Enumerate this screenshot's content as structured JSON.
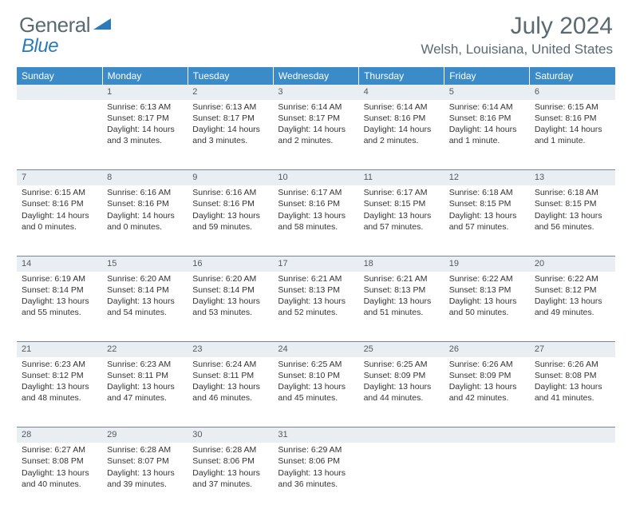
{
  "logo": {
    "part1": "General",
    "part2": "Blue"
  },
  "title": "July 2024",
  "subtitle": "Welsh, Louisiana, United States",
  "headers": [
    "Sunday",
    "Monday",
    "Tuesday",
    "Wednesday",
    "Thursday",
    "Friday",
    "Saturday"
  ],
  "colors": {
    "header_bg": "#3b8bc9",
    "daynum_bg": "#e9eef2",
    "rule": "#7a8591",
    "logo_gray": "#5a6a72",
    "logo_blue": "#2b7bb9"
  },
  "weeks": [
    [
      null,
      {
        "n": "1",
        "sr": "Sunrise: 6:13 AM",
        "ss": "Sunset: 8:17 PM",
        "d1": "Daylight: 14 hours",
        "d2": "and 3 minutes."
      },
      {
        "n": "2",
        "sr": "Sunrise: 6:13 AM",
        "ss": "Sunset: 8:17 PM",
        "d1": "Daylight: 14 hours",
        "d2": "and 3 minutes."
      },
      {
        "n": "3",
        "sr": "Sunrise: 6:14 AM",
        "ss": "Sunset: 8:17 PM",
        "d1": "Daylight: 14 hours",
        "d2": "and 2 minutes."
      },
      {
        "n": "4",
        "sr": "Sunrise: 6:14 AM",
        "ss": "Sunset: 8:16 PM",
        "d1": "Daylight: 14 hours",
        "d2": "and 2 minutes."
      },
      {
        "n": "5",
        "sr": "Sunrise: 6:14 AM",
        "ss": "Sunset: 8:16 PM",
        "d1": "Daylight: 14 hours",
        "d2": "and 1 minute."
      },
      {
        "n": "6",
        "sr": "Sunrise: 6:15 AM",
        "ss": "Sunset: 8:16 PM",
        "d1": "Daylight: 14 hours",
        "d2": "and 1 minute."
      }
    ],
    [
      {
        "n": "7",
        "sr": "Sunrise: 6:15 AM",
        "ss": "Sunset: 8:16 PM",
        "d1": "Daylight: 14 hours",
        "d2": "and 0 minutes."
      },
      {
        "n": "8",
        "sr": "Sunrise: 6:16 AM",
        "ss": "Sunset: 8:16 PM",
        "d1": "Daylight: 14 hours",
        "d2": "and 0 minutes."
      },
      {
        "n": "9",
        "sr": "Sunrise: 6:16 AM",
        "ss": "Sunset: 8:16 PM",
        "d1": "Daylight: 13 hours",
        "d2": "and 59 minutes."
      },
      {
        "n": "10",
        "sr": "Sunrise: 6:17 AM",
        "ss": "Sunset: 8:16 PM",
        "d1": "Daylight: 13 hours",
        "d2": "and 58 minutes."
      },
      {
        "n": "11",
        "sr": "Sunrise: 6:17 AM",
        "ss": "Sunset: 8:15 PM",
        "d1": "Daylight: 13 hours",
        "d2": "and 57 minutes."
      },
      {
        "n": "12",
        "sr": "Sunrise: 6:18 AM",
        "ss": "Sunset: 8:15 PM",
        "d1": "Daylight: 13 hours",
        "d2": "and 57 minutes."
      },
      {
        "n": "13",
        "sr": "Sunrise: 6:18 AM",
        "ss": "Sunset: 8:15 PM",
        "d1": "Daylight: 13 hours",
        "d2": "and 56 minutes."
      }
    ],
    [
      {
        "n": "14",
        "sr": "Sunrise: 6:19 AM",
        "ss": "Sunset: 8:14 PM",
        "d1": "Daylight: 13 hours",
        "d2": "and 55 minutes."
      },
      {
        "n": "15",
        "sr": "Sunrise: 6:20 AM",
        "ss": "Sunset: 8:14 PM",
        "d1": "Daylight: 13 hours",
        "d2": "and 54 minutes."
      },
      {
        "n": "16",
        "sr": "Sunrise: 6:20 AM",
        "ss": "Sunset: 8:14 PM",
        "d1": "Daylight: 13 hours",
        "d2": "and 53 minutes."
      },
      {
        "n": "17",
        "sr": "Sunrise: 6:21 AM",
        "ss": "Sunset: 8:13 PM",
        "d1": "Daylight: 13 hours",
        "d2": "and 52 minutes."
      },
      {
        "n": "18",
        "sr": "Sunrise: 6:21 AM",
        "ss": "Sunset: 8:13 PM",
        "d1": "Daylight: 13 hours",
        "d2": "and 51 minutes."
      },
      {
        "n": "19",
        "sr": "Sunrise: 6:22 AM",
        "ss": "Sunset: 8:13 PM",
        "d1": "Daylight: 13 hours",
        "d2": "and 50 minutes."
      },
      {
        "n": "20",
        "sr": "Sunrise: 6:22 AM",
        "ss": "Sunset: 8:12 PM",
        "d1": "Daylight: 13 hours",
        "d2": "and 49 minutes."
      }
    ],
    [
      {
        "n": "21",
        "sr": "Sunrise: 6:23 AM",
        "ss": "Sunset: 8:12 PM",
        "d1": "Daylight: 13 hours",
        "d2": "and 48 minutes."
      },
      {
        "n": "22",
        "sr": "Sunrise: 6:23 AM",
        "ss": "Sunset: 8:11 PM",
        "d1": "Daylight: 13 hours",
        "d2": "and 47 minutes."
      },
      {
        "n": "23",
        "sr": "Sunrise: 6:24 AM",
        "ss": "Sunset: 8:11 PM",
        "d1": "Daylight: 13 hours",
        "d2": "and 46 minutes."
      },
      {
        "n": "24",
        "sr": "Sunrise: 6:25 AM",
        "ss": "Sunset: 8:10 PM",
        "d1": "Daylight: 13 hours",
        "d2": "and 45 minutes."
      },
      {
        "n": "25",
        "sr": "Sunrise: 6:25 AM",
        "ss": "Sunset: 8:09 PM",
        "d1": "Daylight: 13 hours",
        "d2": "and 44 minutes."
      },
      {
        "n": "26",
        "sr": "Sunrise: 6:26 AM",
        "ss": "Sunset: 8:09 PM",
        "d1": "Daylight: 13 hours",
        "d2": "and 42 minutes."
      },
      {
        "n": "27",
        "sr": "Sunrise: 6:26 AM",
        "ss": "Sunset: 8:08 PM",
        "d1": "Daylight: 13 hours",
        "d2": "and 41 minutes."
      }
    ],
    [
      {
        "n": "28",
        "sr": "Sunrise: 6:27 AM",
        "ss": "Sunset: 8:08 PM",
        "d1": "Daylight: 13 hours",
        "d2": "and 40 minutes."
      },
      {
        "n": "29",
        "sr": "Sunrise: 6:28 AM",
        "ss": "Sunset: 8:07 PM",
        "d1": "Daylight: 13 hours",
        "d2": "and 39 minutes."
      },
      {
        "n": "30",
        "sr": "Sunrise: 6:28 AM",
        "ss": "Sunset: 8:06 PM",
        "d1": "Daylight: 13 hours",
        "d2": "and 37 minutes."
      },
      {
        "n": "31",
        "sr": "Sunrise: 6:29 AM",
        "ss": "Sunset: 8:06 PM",
        "d1": "Daylight: 13 hours",
        "d2": "and 36 minutes."
      },
      null,
      null,
      null
    ]
  ]
}
